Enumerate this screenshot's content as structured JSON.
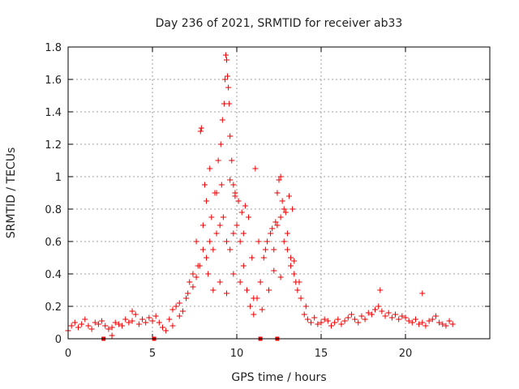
{
  "chart_data": {
    "type": "scatter",
    "title": "Day 236 of 2021, SRMTID for receiver ab33",
    "xlabel": "GPS time / hours",
    "ylabel": "SRMTID / TECUs",
    "xlim": [
      0,
      25
    ],
    "ylim": [
      0,
      1.8
    ],
    "x_ticks": [
      0,
      5,
      10,
      15,
      20
    ],
    "y_ticks": [
      0,
      0.2,
      0.4,
      0.6,
      0.8,
      1,
      1.2,
      1.4,
      1.6,
      1.8
    ],
    "x_tick_labels": [
      "0",
      "5",
      "10",
      "15",
      "20"
    ],
    "y_tick_labels": [
      "0",
      "0.2",
      "0.4",
      "0.6",
      "0.8",
      "1",
      "1.2",
      "1.4",
      "1.6",
      "1.8"
    ],
    "grid": true,
    "marker": "plus",
    "marker_color": "#ee0000",
    "series": [
      {
        "name": "SRMTID",
        "x": [
          0.0,
          0.2,
          0.4,
          0.6,
          0.8,
          1.0,
          1.2,
          1.4,
          1.6,
          1.8,
          2.0,
          2.2,
          2.4,
          2.6,
          2.8,
          3.0,
          3.2,
          3.4,
          3.6,
          3.8,
          4.0,
          4.2,
          4.4,
          4.6,
          4.8,
          5.0,
          5.2,
          5.4,
          5.6,
          5.8,
          6.0,
          6.2,
          6.4,
          6.6,
          6.8,
          7.0,
          7.2,
          7.4,
          7.6,
          7.8,
          8.0,
          8.2,
          8.4,
          8.6,
          8.8,
          9.0,
          9.2,
          9.4,
          9.6,
          9.8,
          10.0,
          10.2,
          10.4,
          10.6,
          10.8,
          11.0,
          11.2,
          11.4,
          11.6,
          11.8,
          12.0,
          12.2,
          12.4,
          12.6,
          12.8,
          13.0,
          13.2,
          13.4,
          13.6,
          13.8,
          14.0,
          14.2,
          14.4,
          14.6,
          14.8,
          15.0,
          15.2,
          15.4,
          15.6,
          15.8,
          16.0,
          16.2,
          16.4,
          16.6,
          16.8,
          17.0,
          17.2,
          17.4,
          17.6,
          17.8,
          18.0,
          18.2,
          18.4,
          18.6,
          18.8,
          19.0,
          19.2,
          19.4,
          19.6,
          19.8,
          20.0,
          20.2,
          20.4,
          20.6,
          20.8,
          21.0,
          21.2,
          21.4,
          21.6,
          21.8,
          22.0,
          22.2,
          22.4,
          22.6,
          22.8,
          7.85,
          7.9,
          8.1,
          8.4,
          8.7,
          8.9,
          9.05,
          9.15,
          9.25,
          9.3,
          9.35,
          9.4,
          9.45,
          9.5,
          9.55,
          9.6,
          9.7,
          9.8,
          9.9,
          10.1,
          10.3,
          10.5,
          10.7,
          11.1,
          12.4,
          12.5,
          12.6,
          12.7,
          12.9,
          13.1,
          13.3,
          7.6,
          8.0,
          8.2,
          8.5,
          8.8,
          9.1,
          9.6,
          9.9,
          10.4,
          10.9,
          11.3,
          11.7,
          12.1,
          12.3,
          12.8,
          13.0,
          13.2,
          13.5,
          6.2,
          6.6,
          7.1,
          7.4,
          7.7,
          8.3,
          8.6,
          9.0,
          9.4,
          9.8,
          10.2,
          10.6,
          11.0,
          11.5,
          11.9,
          12.2,
          12.6,
          13.4,
          13.7,
          14.1,
          18.5,
          21.0,
          3.8,
          2.6
        ],
        "y": [
          0.05,
          0.08,
          0.1,
          0.07,
          0.09,
          0.12,
          0.08,
          0.06,
          0.1,
          0.09,
          0.11,
          0.08,
          0.06,
          0.07,
          0.1,
          0.09,
          0.08,
          0.12,
          0.1,
          0.11,
          0.15,
          0.09,
          0.12,
          0.1,
          0.13,
          0.11,
          0.14,
          0.1,
          0.07,
          0.05,
          0.12,
          0.18,
          0.2,
          0.22,
          0.17,
          0.25,
          0.35,
          0.4,
          0.38,
          0.45,
          0.55,
          0.5,
          0.6,
          0.55,
          0.65,
          0.7,
          0.75,
          0.6,
          0.55,
          0.65,
          0.7,
          0.6,
          0.45,
          0.3,
          0.2,
          0.15,
          0.25,
          0.35,
          0.5,
          0.6,
          0.65,
          0.55,
          0.7,
          0.75,
          0.8,
          0.65,
          0.5,
          0.4,
          0.3,
          0.25,
          0.15,
          0.12,
          0.1,
          0.13,
          0.09,
          0.1,
          0.12,
          0.11,
          0.08,
          0.1,
          0.12,
          0.09,
          0.11,
          0.13,
          0.15,
          0.12,
          0.1,
          0.14,
          0.12,
          0.16,
          0.15,
          0.18,
          0.2,
          0.17,
          0.14,
          0.16,
          0.13,
          0.15,
          0.12,
          0.14,
          0.13,
          0.11,
          0.1,
          0.12,
          0.09,
          0.1,
          0.08,
          0.11,
          0.12,
          0.14,
          0.1,
          0.09,
          0.08,
          0.11,
          0.09,
          1.28,
          1.3,
          0.95,
          1.05,
          0.9,
          1.1,
          1.2,
          1.35,
          1.45,
          1.6,
          1.75,
          1.72,
          1.62,
          1.55,
          1.45,
          1.25,
          1.1,
          0.95,
          0.88,
          0.85,
          0.78,
          0.82,
          0.75,
          1.05,
          0.9,
          0.98,
          1.0,
          0.85,
          0.78,
          0.88,
          0.8,
          0.6,
          0.7,
          0.85,
          0.75,
          0.9,
          0.95,
          0.98,
          0.9,
          0.65,
          0.5,
          0.6,
          0.55,
          0.68,
          0.72,
          0.6,
          0.55,
          0.45,
          0.35,
          0.08,
          0.14,
          0.28,
          0.32,
          0.45,
          0.4,
          0.3,
          0.35,
          0.28,
          0.4,
          0.35,
          0.3,
          0.25,
          0.18,
          0.3,
          0.42,
          0.38,
          0.48,
          0.35,
          0.2,
          0.3,
          0.28,
          0.17,
          0.02
        ]
      }
    ],
    "dropout_markers_x": [
      2.1,
      5.1,
      11.4,
      12.4
    ]
  }
}
